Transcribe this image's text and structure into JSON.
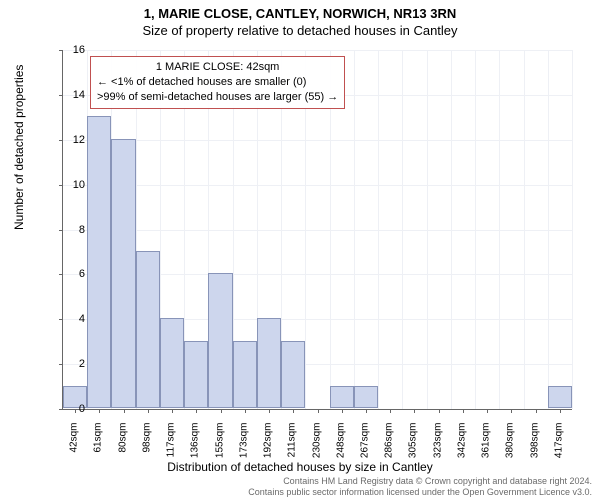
{
  "title_line1": "1, MARIE CLOSE, CANTLEY, NORWICH, NR13 3RN",
  "title_line2": "Size of property relative to detached houses in Cantley",
  "ylabel": "Number of detached properties",
  "xlabel": "Distribution of detached houses by size in Cantley",
  "chart": {
    "type": "histogram",
    "ymax": 16,
    "ytick_step": 2,
    "bar_color": "#cdd6ed",
    "bar_border": "#8894b8",
    "grid_color": "#eef0f5",
    "background_color": "#ffffff",
    "annotation_border": "#c05050",
    "categories": [
      "42sqm",
      "61sqm",
      "80sqm",
      "98sqm",
      "117sqm",
      "136sqm",
      "155sqm",
      "173sqm",
      "192sqm",
      "211sqm",
      "230sqm",
      "248sqm",
      "267sqm",
      "286sqm",
      "305sqm",
      "323sqm",
      "342sqm",
      "361sqm",
      "380sqm",
      "398sqm",
      "417sqm"
    ],
    "values": [
      1,
      13,
      12,
      7,
      4,
      3,
      6,
      3,
      4,
      3,
      0,
      1,
      1,
      0,
      0,
      0,
      0,
      0,
      0,
      0,
      1
    ]
  },
  "annotation": {
    "line1": "1 MARIE CLOSE: 42sqm",
    "line2": "← <1% of detached houses are smaller (0)",
    "line3": ">99% of semi-detached houses are larger (55) →"
  },
  "footer_line1": "Contains HM Land Registry data © Crown copyright and database right 2024.",
  "footer_line2": "Contains public sector information licensed under the Open Government Licence v3.0."
}
